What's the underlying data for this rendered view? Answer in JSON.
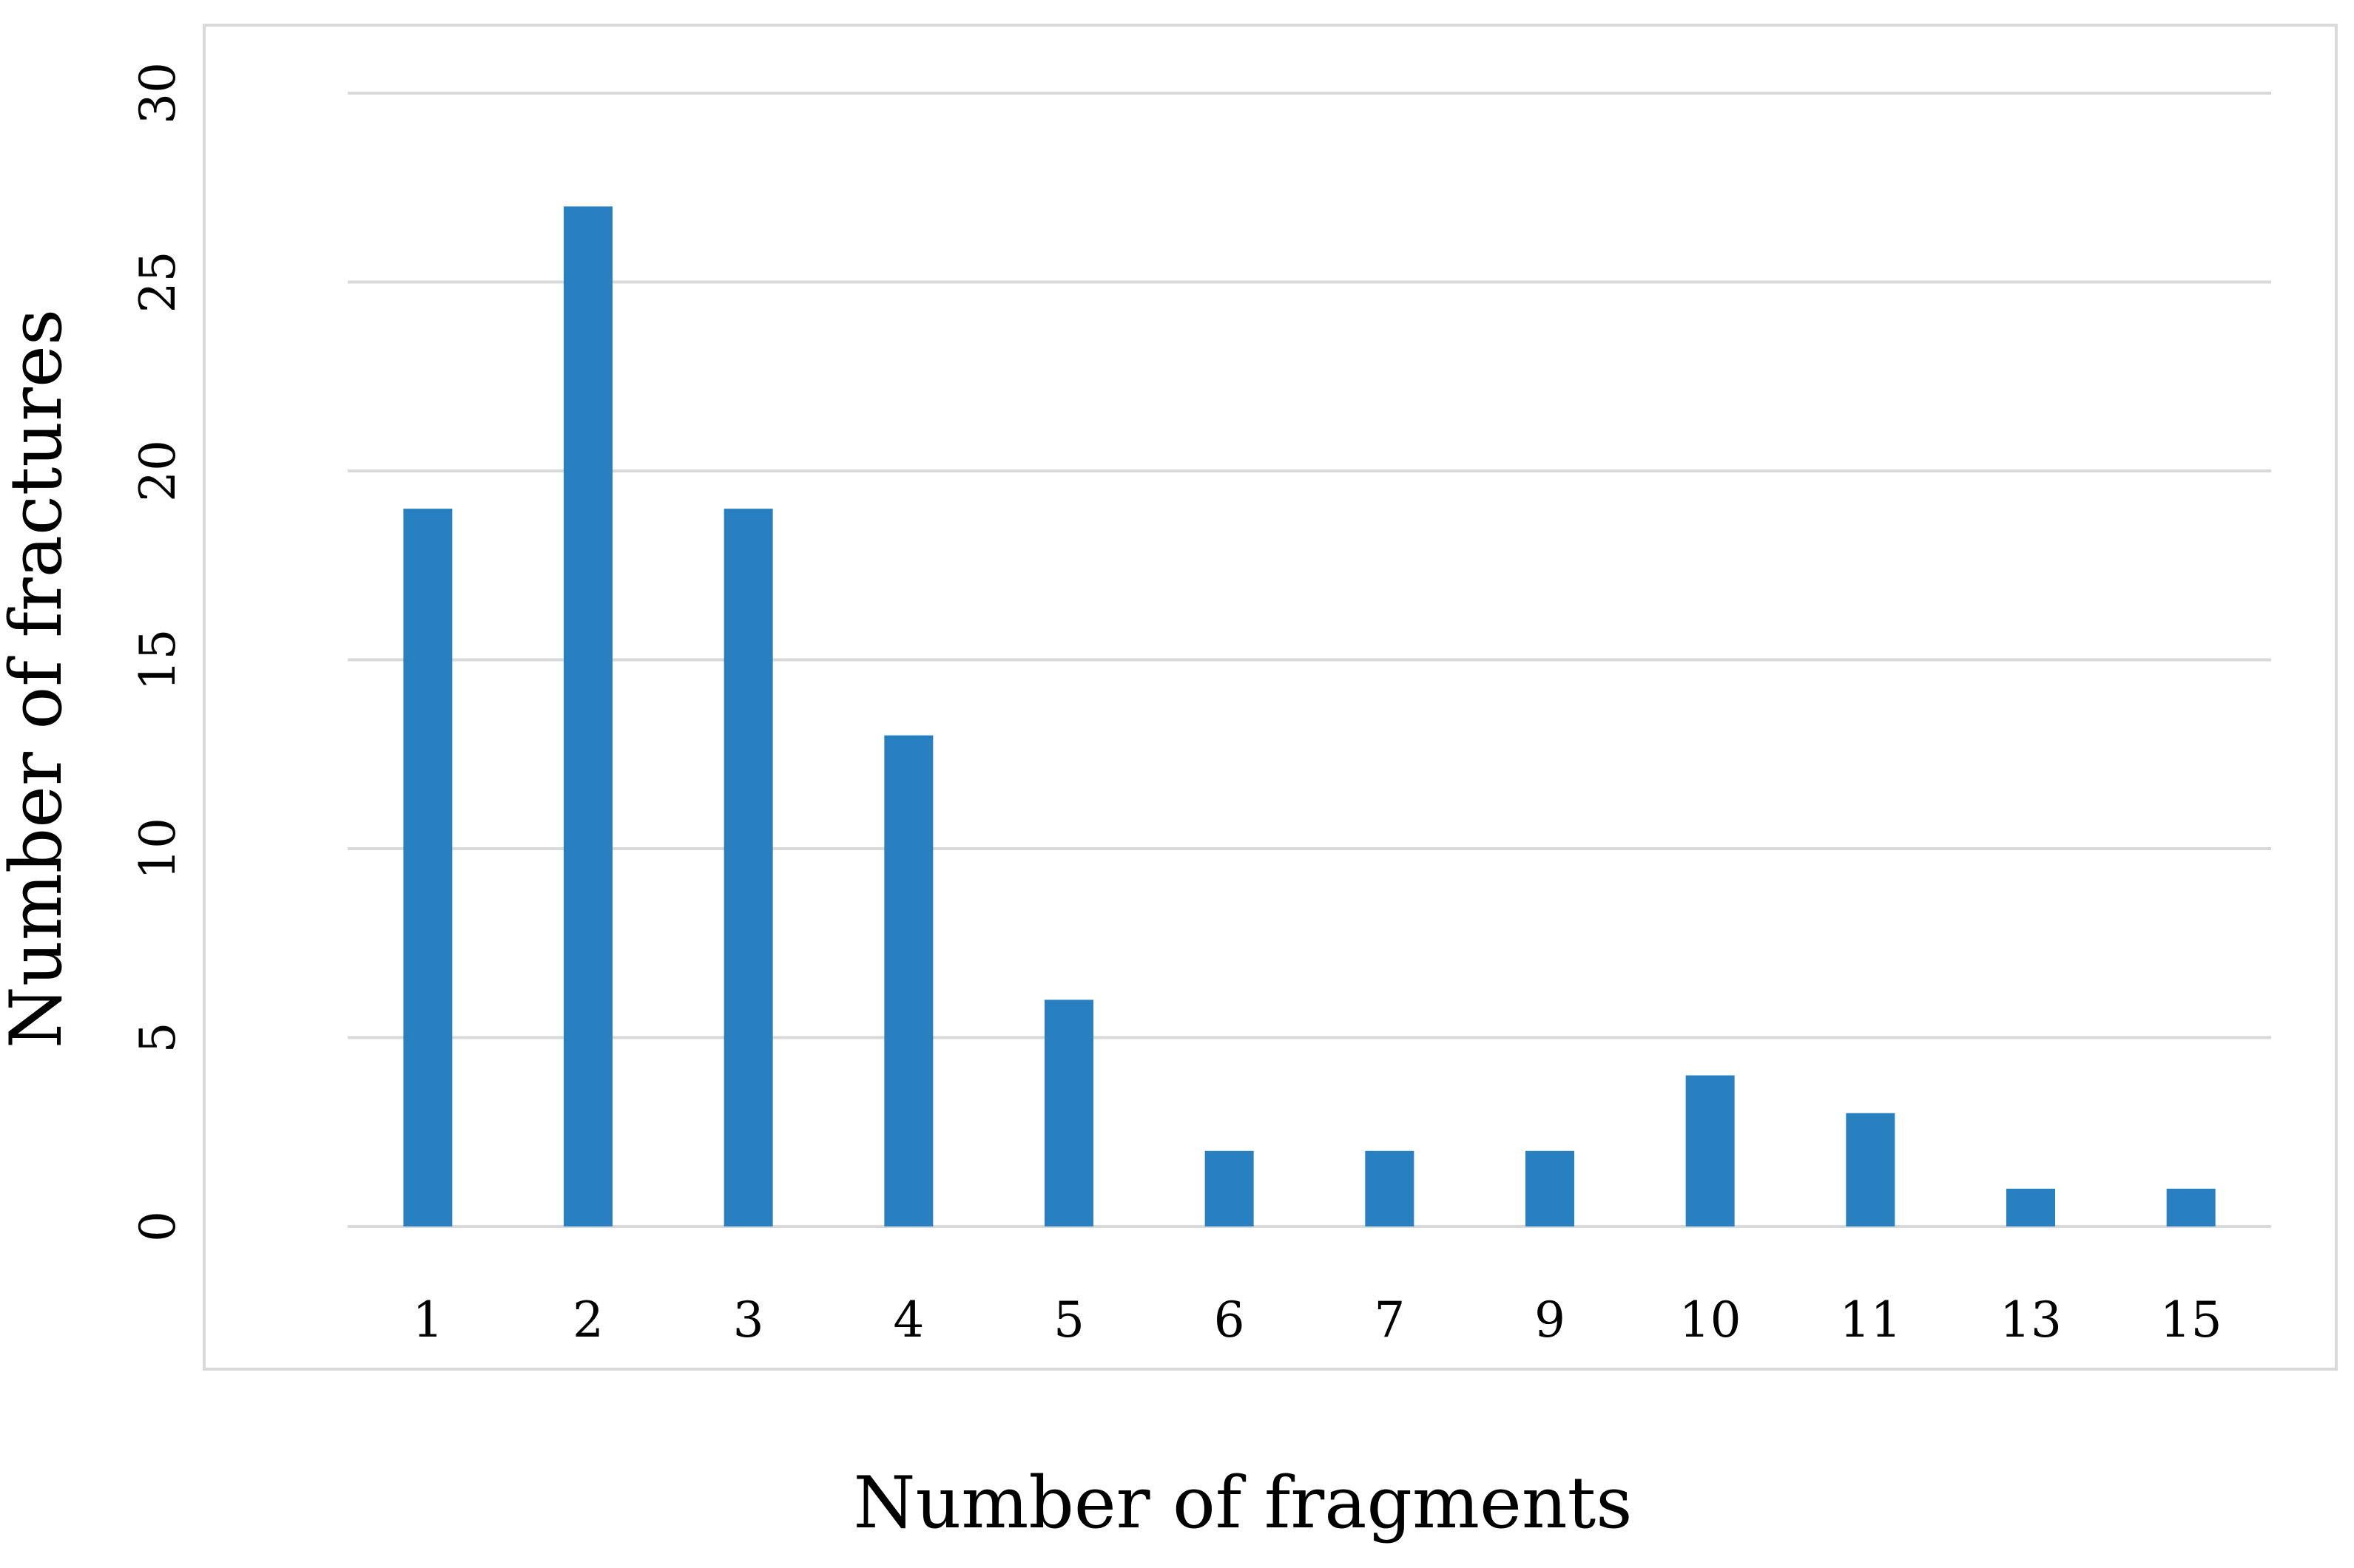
{
  "chart_data": {
    "type": "bar",
    "categories": [
      "1",
      "2",
      "3",
      "4",
      "5",
      "6",
      "7",
      "9",
      "10",
      "11",
      "13",
      "15"
    ],
    "values": [
      19,
      27,
      19,
      13,
      6,
      2,
      2,
      2,
      4,
      3,
      1,
      1
    ],
    "xlabel": "Number of fragments",
    "ylabel": "Number of fractures",
    "ylim": [
      0,
      30
    ],
    "yticks": [
      "0",
      "5",
      "10",
      "15",
      "20",
      "25",
      "30"
    ],
    "grid": true,
    "legend": "none",
    "bar_color": "#2980c0",
    "grid_color": "#d9d9d9"
  }
}
